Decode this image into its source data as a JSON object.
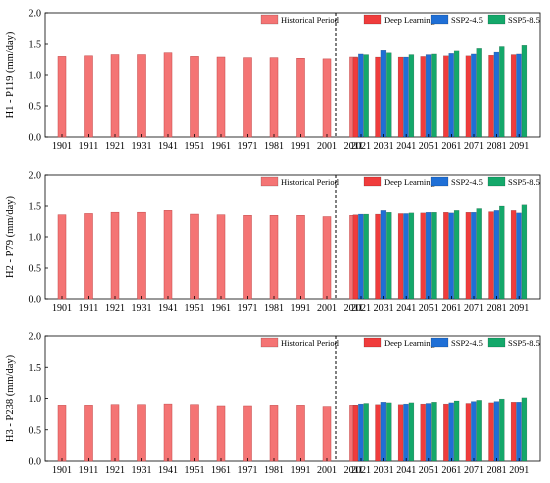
{
  "colors": {
    "historical": "#F47474",
    "deep_learning": "#F03C3C",
    "ssp245": "#1F6FD6",
    "ssp585": "#14A86A"
  },
  "chart_data": [
    {
      "type": "bar",
      "ylabel": "H1 - P119 (mm/day)",
      "ylim": [
        0,
        2.0
      ],
      "yticks": [
        "0.0",
        "0.5",
        "1.0",
        "1.5",
        "2.0"
      ],
      "legend": [
        "Historical Period",
        "Deep Learning",
        "SSP2-4.5",
        "SSP5-8.5"
      ],
      "historical": {
        "name": "Historical Period",
        "categories": [
          "1901",
          "1911",
          "1921",
          "1931",
          "1941",
          "1951",
          "1961",
          "1971",
          "1981",
          "1991",
          "2001",
          "2011"
        ],
        "values": [
          1.3,
          1.31,
          1.33,
          1.33,
          1.36,
          1.3,
          1.29,
          1.28,
          1.28,
          1.27,
          1.26,
          1.29
        ]
      },
      "future": {
        "categories": [
          "2021",
          "2031",
          "2041",
          "2051",
          "2061",
          "2071",
          "2081",
          "2091"
        ],
        "series": [
          {
            "name": "Deep Learning",
            "values": [
              1.28,
              1.29,
              1.29,
              1.3,
              1.31,
              1.31,
              1.32,
              1.33
            ]
          },
          {
            "name": "SSP2-4.5",
            "values": [
              1.34,
              1.4,
              1.29,
              1.33,
              1.35,
              1.34,
              1.37,
              1.34
            ]
          },
          {
            "name": "SSP5-8.5",
            "values": [
              1.33,
              1.36,
              1.33,
              1.34,
              1.39,
              1.43,
              1.46,
              1.48
            ]
          }
        ]
      }
    },
    {
      "type": "bar",
      "ylabel": "H2 - P79 (mm/day)",
      "ylim": [
        0,
        2.0
      ],
      "yticks": [
        "0.0",
        "0.5",
        "1.0",
        "1.5",
        "2.0"
      ],
      "legend": [
        "Historical Period",
        "Deep Learning",
        "SSP2-4.5",
        "SSP5-8.5"
      ],
      "historical": {
        "name": "Historical Period",
        "categories": [
          "1901",
          "1911",
          "1921",
          "1931",
          "1941",
          "1951",
          "1961",
          "1971",
          "1981",
          "1991",
          "2001",
          "2011"
        ],
        "values": [
          1.36,
          1.38,
          1.4,
          1.4,
          1.43,
          1.37,
          1.36,
          1.35,
          1.35,
          1.35,
          1.33,
          1.35
        ]
      },
      "future": {
        "categories": [
          "2021",
          "2031",
          "2041",
          "2051",
          "2061",
          "2071",
          "2081",
          "2091"
        ],
        "series": [
          {
            "name": "Deep Learning",
            "values": [
              1.36,
              1.37,
              1.38,
              1.39,
              1.4,
              1.4,
              1.41,
              1.43
            ]
          },
          {
            "name": "SSP2-4.5",
            "values": [
              1.37,
              1.43,
              1.38,
              1.4,
              1.39,
              1.4,
              1.43,
              1.39
            ]
          },
          {
            "name": "SSP5-8.5",
            "values": [
              1.37,
              1.4,
              1.39,
              1.4,
              1.43,
              1.46,
              1.5,
              1.52
            ]
          }
        ]
      }
    },
    {
      "type": "bar",
      "ylabel": "H3 - P238 (mm/day)",
      "ylim": [
        0,
        2.0
      ],
      "yticks": [
        "0.0",
        "0.5",
        "1.0",
        "1.5",
        "2.0"
      ],
      "legend": [
        "Historical Period",
        "Deep Learning",
        "SSP2-4.5",
        "SSP5-8.5"
      ],
      "historical": {
        "name": "Historical Period",
        "categories": [
          "1901",
          "1911",
          "1921",
          "1931",
          "1941",
          "1951",
          "1961",
          "1971",
          "1981",
          "1991",
          "2001",
          "2011"
        ],
        "values": [
          0.89,
          0.89,
          0.9,
          0.9,
          0.91,
          0.9,
          0.88,
          0.88,
          0.89,
          0.89,
          0.87,
          0.89
        ]
      },
      "future": {
        "categories": [
          "2021",
          "2031",
          "2041",
          "2051",
          "2061",
          "2071",
          "2081",
          "2091"
        ],
        "series": [
          {
            "name": "Deep Learning",
            "values": [
              0.89,
              0.9,
              0.9,
              0.91,
              0.91,
              0.92,
              0.93,
              0.94
            ]
          },
          {
            "name": "SSP2-4.5",
            "values": [
              0.91,
              0.94,
              0.91,
              0.92,
              0.93,
              0.95,
              0.95,
              0.94
            ]
          },
          {
            "name": "SSP5-8.5",
            "values": [
              0.92,
              0.93,
              0.93,
              0.94,
              0.96,
              0.97,
              0.99,
              1.01
            ]
          }
        ]
      }
    }
  ]
}
